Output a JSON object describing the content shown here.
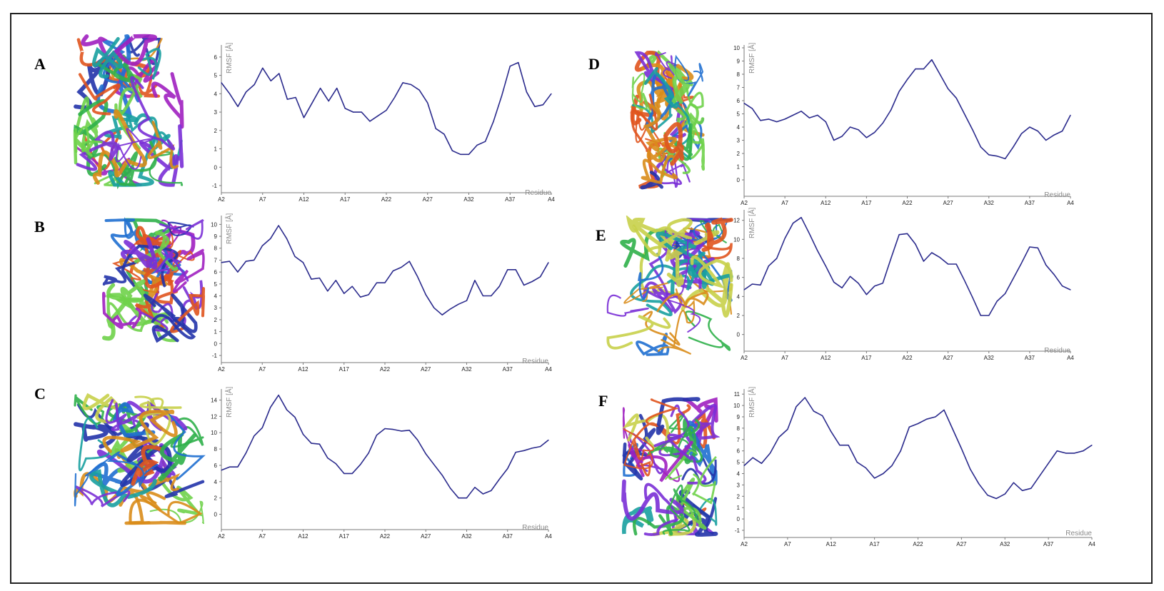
{
  "colors": {
    "line": "#2a2a8c",
    "axis": "#7a7a7a",
    "frame": "#222222",
    "ribbon_palette": [
      "#2233aa",
      "#1f6fd0",
      "#7a2fd6",
      "#a020c0",
      "#2fb04a",
      "#6fd24a",
      "#c8d04a",
      "#d98c1a",
      "#e0541e",
      "#18a0a0"
    ]
  },
  "panels": [
    {
      "label": "A",
      "molecule_icon": "protein-ribbon-ensemble-icon",
      "chart_data": {
        "type": "line",
        "ylabel": "RMSF [Å]",
        "xlabel": "Residue",
        "ylim": [
          -1,
          6.5
        ],
        "yticks": [
          -1,
          0,
          1,
          2,
          3,
          4,
          5,
          6
        ],
        "categories": [
          "A2",
          "A7",
          "A12",
          "A17",
          "A22",
          "A27",
          "A32",
          "A37",
          "A4"
        ],
        "x_domain": [
          2,
          42
        ],
        "series": [
          {
            "x": [
              2,
              3,
              4,
              5,
              6,
              7,
              8,
              9,
              10,
              11,
              12,
              13,
              14,
              15,
              16,
              17,
              18,
              19,
              20,
              21,
              22,
              23,
              24,
              25,
              26,
              27,
              28,
              29,
              30,
              31,
              32,
              33,
              34,
              35,
              36,
              37,
              38,
              39,
              40,
              41,
              42
            ],
            "values": [
              4.6,
              4.0,
              3.3,
              4.1,
              4.5,
              5.4,
              4.7,
              5.1,
              3.7,
              3.8,
              2.7,
              3.5,
              4.3,
              3.6,
              4.3,
              3.2,
              3.0,
              3.0,
              2.5,
              2.8,
              3.1,
              3.8,
              4.6,
              4.5,
              4.2,
              3.5,
              2.1,
              1.8,
              0.9,
              0.7,
              0.7,
              1.2,
              1.4,
              2.5,
              3.9,
              5.5,
              5.7,
              4.1,
              3.3,
              3.4,
              4.0
            ]
          }
        ]
      }
    },
    {
      "label": "B",
      "molecule_icon": "protein-ribbon-ensemble-icon",
      "chart_data": {
        "type": "line",
        "ylabel": "RMSF [Å]",
        "xlabel": "Residue",
        "ylim": [
          -1,
          10.5
        ],
        "yticks": [
          -1,
          0,
          1,
          2,
          3,
          4,
          5,
          6,
          7,
          8,
          9,
          10
        ],
        "categories": [
          "A2",
          "A7",
          "A12",
          "A17",
          "A22",
          "A27",
          "A32",
          "A37",
          "A4"
        ],
        "x_domain": [
          2,
          42
        ],
        "series": [
          {
            "x": [
              2,
              3,
              4,
              5,
              6,
              7,
              8,
              9,
              10,
              11,
              12,
              13,
              14,
              15,
              16,
              17,
              18,
              19,
              20,
              21,
              22,
              23,
              24,
              25,
              26,
              27,
              28,
              29,
              30,
              31,
              32,
              33,
              34,
              35,
              36,
              37,
              38,
              39,
              40,
              41,
              42
            ],
            "values": [
              6.8,
              6.9,
              6.0,
              6.9,
              7.0,
              8.2,
              8.8,
              9.9,
              8.8,
              7.3,
              6.8,
              5.4,
              5.5,
              4.4,
              5.3,
              4.2,
              4.8,
              3.9,
              4.1,
              5.1,
              5.1,
              6.1,
              6.4,
              6.9,
              5.6,
              4.1,
              3.0,
              2.4,
              2.9,
              3.3,
              3.6,
              5.3,
              4.0,
              4.0,
              4.8,
              6.2,
              6.2,
              4.9,
              5.2,
              5.6,
              6.8
            ]
          }
        ]
      }
    },
    {
      "label": "C",
      "molecule_icon": "protein-ribbon-ensemble-icon",
      "chart_data": {
        "type": "line",
        "ylabel": "RMSF [Å]",
        "xlabel": "Residue",
        "ylim": [
          -1,
          15
        ],
        "yticks": [
          0,
          2,
          4,
          6,
          8,
          10,
          12,
          14
        ],
        "categories": [
          "A2",
          "A7",
          "A12",
          "A17",
          "A22",
          "A27",
          "A32",
          "A37",
          "A4"
        ],
        "x_domain": [
          2,
          42
        ],
        "series": [
          {
            "x": [
              2,
              3,
              4,
              5,
              6,
              7,
              8,
              9,
              10,
              11,
              12,
              13,
              14,
              15,
              16,
              17,
              18,
              19,
              20,
              21,
              22,
              23,
              24,
              25,
              26,
              27,
              28,
              29,
              30,
              31,
              32,
              33,
              34,
              35,
              36,
              37,
              38,
              39,
              40,
              41,
              42
            ],
            "values": [
              5.4,
              5.8,
              5.8,
              7.5,
              9.6,
              10.6,
              13.1,
              14.6,
              12.8,
              11.9,
              9.8,
              8.7,
              8.6,
              6.9,
              6.2,
              5.0,
              5.0,
              6.1,
              7.5,
              9.7,
              10.5,
              10.4,
              10.2,
              10.3,
              9.1,
              7.4,
              6.1,
              4.8,
              3.2,
              2.0,
              2.0,
              3.3,
              2.5,
              2.9,
              4.3,
              5.6,
              7.6,
              7.8,
              8.1,
              8.3,
              9.1
            ]
          }
        ]
      }
    },
    {
      "label": "D",
      "molecule_icon": "protein-ribbon-ensemble-icon",
      "chart_data": {
        "type": "line",
        "ylabel": "RMSF [Å]",
        "xlabel": "Residue",
        "ylim": [
          -0.7,
          10
        ],
        "yticks": [
          0,
          1,
          2,
          3,
          4,
          5,
          6,
          7,
          8,
          9,
          10
        ],
        "categories": [
          "A2",
          "A7",
          "A12",
          "A17",
          "A22",
          "A27",
          "A32",
          "A37",
          "A4"
        ],
        "x_domain": [
          2,
          42
        ],
        "series": [
          {
            "x": [
              2,
              3,
              4,
              5,
              6,
              7,
              8,
              9,
              10,
              11,
              12,
              13,
              14,
              15,
              16,
              17,
              18,
              19,
              20,
              21,
              22,
              23,
              24,
              25,
              26,
              27,
              28,
              29,
              30,
              31,
              32,
              33,
              34,
              35,
              36,
              37,
              38,
              39,
              40,
              41,
              42
            ],
            "values": [
              5.8,
              5.4,
              4.5,
              4.6,
              4.4,
              4.6,
              4.9,
              5.2,
              4.7,
              4.9,
              4.4,
              3.0,
              3.3,
              4.0,
              3.8,
              3.2,
              3.6,
              4.3,
              5.3,
              6.7,
              7.6,
              8.4,
              8.4,
              9.1,
              8.0,
              6.9,
              6.2,
              5.0,
              3.8,
              2.5,
              1.9,
              1.8,
              1.6,
              2.5,
              3.5,
              4.0,
              3.7,
              3.0,
              3.4,
              3.7,
              4.9
            ]
          }
        ]
      }
    },
    {
      "label": "E",
      "molecule_icon": "protein-ribbon-ensemble-icon",
      "chart_data": {
        "type": "line",
        "ylabel": "RMSF [Å]",
        "xlabel": "Residue",
        "ylim": [
          -1,
          12.8
        ],
        "yticks": [
          0,
          2,
          4,
          6,
          8,
          10,
          12
        ],
        "categories": [
          "A2",
          "A7",
          "A12",
          "A17",
          "A22",
          "A27",
          "A32",
          "A37",
          "A4"
        ],
        "x_domain": [
          2,
          42
        ],
        "series": [
          {
            "x": [
              2,
              3,
              4,
              5,
              6,
              7,
              8,
              9,
              10,
              11,
              12,
              13,
              14,
              15,
              16,
              17,
              18,
              19,
              20,
              21,
              22,
              23,
              24,
              25,
              26,
              27,
              28,
              29,
              30,
              31,
              32,
              33,
              34,
              35,
              36,
              37,
              38,
              39,
              40,
              41,
              42
            ],
            "values": [
              4.7,
              5.3,
              5.2,
              7.2,
              8.0,
              10.1,
              11.7,
              12.3,
              10.6,
              8.8,
              7.2,
              5.5,
              4.9,
              6.1,
              5.4,
              4.2,
              5.1,
              5.4,
              8.0,
              10.5,
              10.6,
              9.5,
              7.7,
              8.6,
              8.1,
              7.4,
              7.4,
              5.7,
              3.9,
              2.0,
              2.0,
              3.5,
              4.3,
              5.9,
              7.5,
              9.2,
              9.1,
              7.3,
              6.3,
              5.1,
              4.7
            ]
          }
        ]
      }
    },
    {
      "label": "F",
      "molecule_icon": "protein-ribbon-ensemble-icon",
      "chart_data": {
        "type": "line",
        "ylabel": "RMSF [Å]",
        "xlabel": "Residue",
        "ylim": [
          -1,
          11.2
        ],
        "yticks": [
          -1,
          0,
          1,
          2,
          3,
          4,
          5,
          6,
          7,
          8,
          9,
          10,
          11
        ],
        "categories": [
          "A2",
          "A7",
          "A12",
          "A17",
          "A22",
          "A27",
          "A32",
          "A37",
          "A4"
        ],
        "x_domain": [
          2,
          42
        ],
        "series": [
          {
            "x": [
              2,
              3,
              4,
              5,
              6,
              7,
              8,
              9,
              10,
              11,
              12,
              13,
              14,
              15,
              16,
              17,
              18,
              19,
              20,
              21,
              22,
              23,
              24,
              25,
              26,
              27,
              28,
              29,
              30,
              31,
              32,
              33,
              34,
              35,
              36,
              37,
              38,
              39,
              40,
              41,
              42
            ],
            "values": [
              4.7,
              5.4,
              4.9,
              5.8,
              7.2,
              7.9,
              9.9,
              10.7,
              9.5,
              9.1,
              7.7,
              6.5,
              6.5,
              5.0,
              4.5,
              3.6,
              4.0,
              4.7,
              6.0,
              8.1,
              8.4,
              8.8,
              9.0,
              9.6,
              7.9,
              6.2,
              4.4,
              3.1,
              2.1,
              1.8,
              2.2,
              3.2,
              2.5,
              2.7,
              3.8,
              4.9,
              6.0,
              5.8,
              5.8,
              6.0,
              6.5
            ]
          }
        ]
      }
    }
  ]
}
